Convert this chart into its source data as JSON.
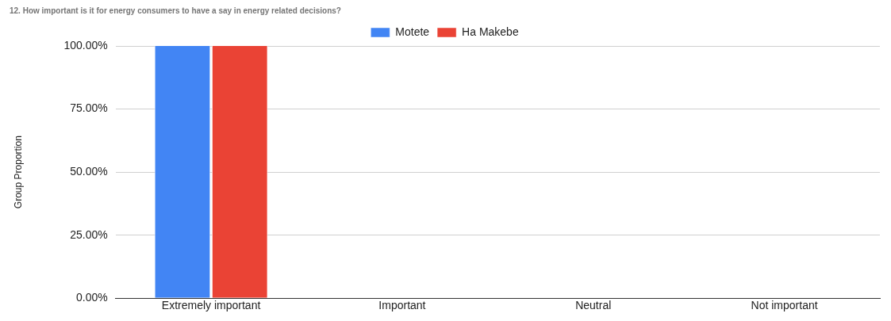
{
  "chart_data": {
    "type": "bar",
    "title": "12. How important is it for energy consumers to have a say in energy related decisions?",
    "ylabel": "Group Proportion",
    "categories": [
      "Extremely important",
      "Important",
      "Neutral",
      "Not important"
    ],
    "series": [
      {
        "name": "Motete",
        "color": "#4285f4",
        "values": [
          100,
          0,
          0,
          0
        ]
      },
      {
        "name": "Ha Makebe",
        "color": "#ea4335",
        "values": [
          100,
          0,
          0,
          0
        ]
      }
    ],
    "ylim": [
      0,
      100
    ],
    "yticks": [
      {
        "value": 0,
        "label": "0.00%"
      },
      {
        "value": 25,
        "label": "25.00%"
      },
      {
        "value": 50,
        "label": "50.00%"
      },
      {
        "value": 75,
        "label": "75.00%"
      },
      {
        "value": 100,
        "label": "100.00%"
      }
    ],
    "grid": "y",
    "legend": "top"
  }
}
